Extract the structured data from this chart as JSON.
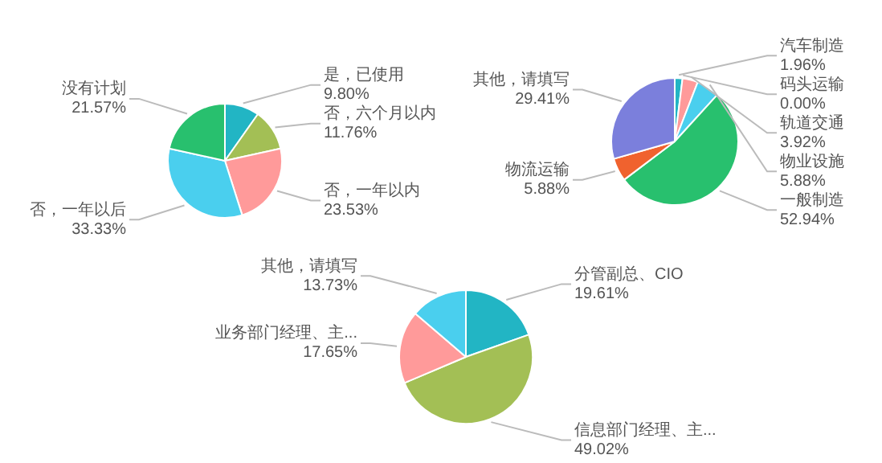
{
  "chart_data": [
    {
      "type": "pie",
      "categories": [
        "是，已使用",
        "否，六个月以内",
        "否，一年以内",
        "否，一年以后",
        "没有计划"
      ],
      "values": [
        9.8,
        11.76,
        23.53,
        33.33,
        21.57
      ],
      "colors": [
        "#22b5c4",
        "#a3bf55",
        "#ff9a9a",
        "#4acfee",
        "#28c06e"
      ],
      "value_labels": [
        "9.80%",
        "11.76%",
        "23.53%",
        "33.33%",
        "21.57%"
      ]
    },
    {
      "type": "pie",
      "categories": [
        "汽车制造",
        "码头运输",
        "轨道交通",
        "物业设施",
        "一般制造",
        "物流运输",
        "其他，请填写"
      ],
      "values": [
        1.96,
        0.0,
        3.92,
        5.88,
        52.94,
        5.88,
        29.41
      ],
      "colors": [
        "#22b5c4",
        "#a3bf55",
        "#ff9a9a",
        "#4acfee",
        "#28c06e",
        "#f0622e",
        "#7b7fdc"
      ],
      "value_labels": [
        "1.96%",
        "0.00%",
        "3.92%",
        "5.88%",
        "52.94%",
        "5.88%",
        "29.41%"
      ]
    },
    {
      "type": "pie",
      "categories": [
        "分管副总、CIO",
        "信息部门经理、主...",
        "业务部门经理、主...",
        "其他，请填写"
      ],
      "values": [
        19.61,
        49.02,
        17.65,
        13.73
      ],
      "colors": [
        "#22b5c4",
        "#a3bf55",
        "#ff9a9a",
        "#4acfee"
      ],
      "value_labels": [
        "19.61%",
        "49.02%",
        "17.65%",
        "13.73%"
      ]
    }
  ]
}
